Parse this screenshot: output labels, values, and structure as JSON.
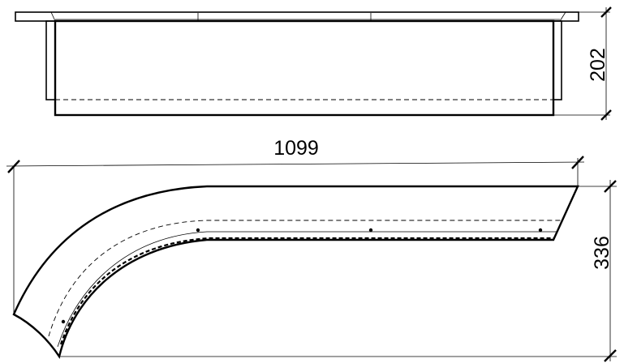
{
  "dimensions": {
    "height_top_view": "202",
    "length_bottom_view": "1099",
    "depth_bottom_view": "336"
  }
}
